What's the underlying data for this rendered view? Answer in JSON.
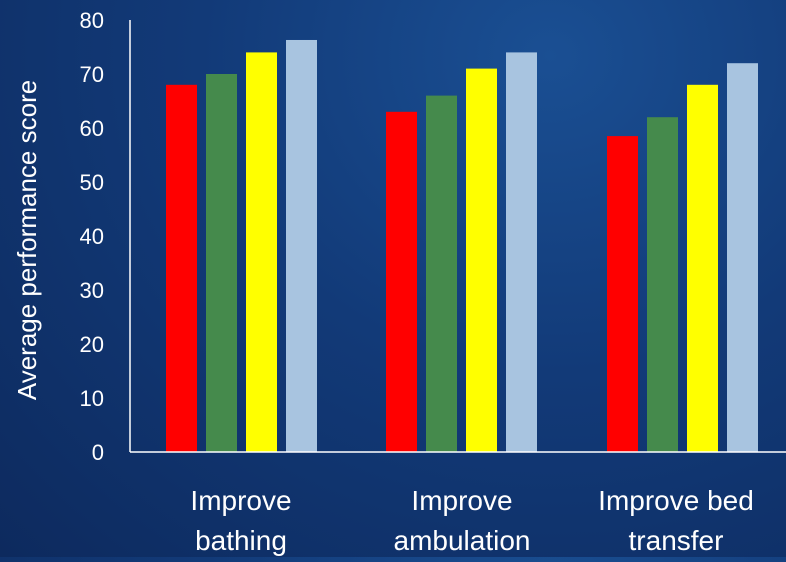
{
  "colors": {
    "background": "#123a78",
    "axis": "#ffffff",
    "text": "#ffffff"
  },
  "chart_data": {
    "type": "bar",
    "title": "",
    "xlabel": "",
    "ylabel": "Average performance score",
    "ylim": [
      0,
      80
    ],
    "yticks": [
      0,
      10,
      20,
      30,
      40,
      50,
      60,
      70,
      80
    ],
    "grid": false,
    "legend": "none",
    "categories": [
      [
        "Improve",
        "bathing"
      ],
      [
        "Improve",
        "ambulation"
      ],
      [
        "Improve bed",
        "transfer"
      ]
    ],
    "series": [
      {
        "color": "#ff0000",
        "values": [
          68,
          63,
          58.5
        ]
      },
      {
        "color": "#458a4c",
        "values": [
          70,
          66,
          62
        ]
      },
      {
        "color": "#ffff00",
        "values": [
          74,
          71,
          68
        ]
      },
      {
        "color": "#a8c4e0",
        "values": [
          76.3,
          74,
          72
        ]
      }
    ]
  }
}
